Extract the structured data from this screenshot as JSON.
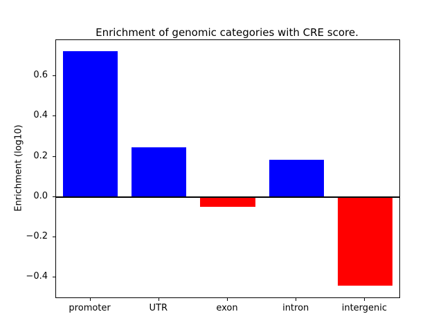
{
  "figure": {
    "background_color": "#ffffff"
  },
  "chart_data": {
    "type": "bar",
    "title": "Enrichment of genomic categories with CRE score.",
    "xlabel": "",
    "ylabel": "Enrichment (log10)",
    "categories": [
      "promoter",
      "UTR",
      "exon",
      "intron",
      "intergenic"
    ],
    "values": [
      0.725,
      0.245,
      -0.05,
      0.185,
      -0.44
    ],
    "positive_color": "#0000ff",
    "negative_color": "#ff0000",
    "ylim": [
      -0.5,
      0.78
    ],
    "yticks": [
      -0.4,
      -0.2,
      0.0,
      0.2,
      0.4,
      0.6
    ],
    "zero_line": true,
    "grid": false,
    "legend": null
  }
}
